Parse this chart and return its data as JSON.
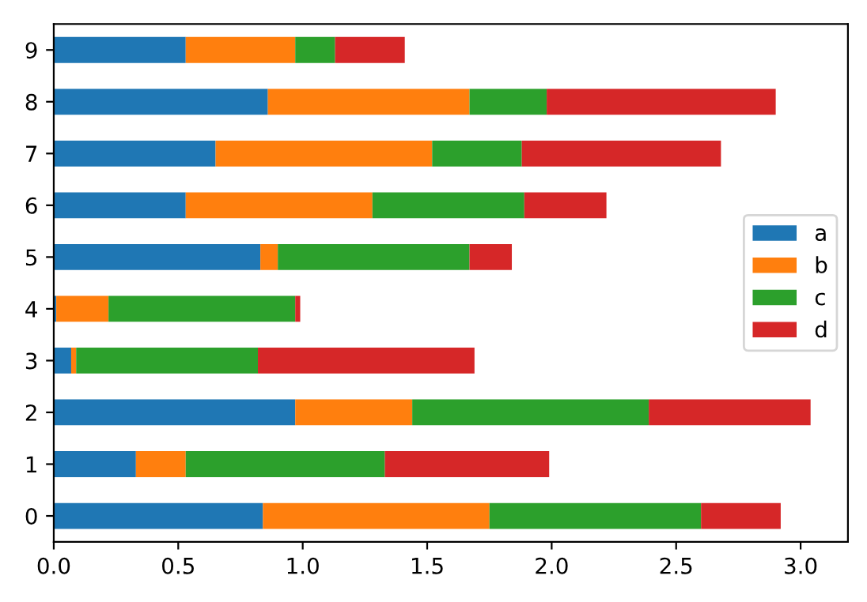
{
  "chart_data": {
    "type": "bar",
    "orientation": "horizontal",
    "stacked": true,
    "categories": [
      "9",
      "8",
      "7",
      "6",
      "5",
      "4",
      "3",
      "2",
      "1",
      "0"
    ],
    "series": [
      {
        "name": "a",
        "color": "#1f77b4",
        "values": [
          0.53,
          0.86,
          0.65,
          0.53,
          0.83,
          0.01,
          0.07,
          0.97,
          0.33,
          0.84
        ]
      },
      {
        "name": "b",
        "color": "#ff7f0e",
        "values": [
          0.44,
          0.81,
          0.87,
          0.75,
          0.07,
          0.21,
          0.02,
          0.47,
          0.2,
          0.91
        ]
      },
      {
        "name": "c",
        "color": "#2ca02c",
        "values": [
          0.16,
          0.31,
          0.36,
          0.61,
          0.77,
          0.75,
          0.73,
          0.95,
          0.8,
          0.85
        ]
      },
      {
        "name": "d",
        "color": "#d62728",
        "values": [
          0.28,
          0.92,
          0.8,
          0.33,
          0.17,
          0.02,
          0.87,
          0.65,
          0.66,
          0.32
        ]
      }
    ],
    "xlim": [
      0,
      3.19
    ],
    "xticks": [
      {
        "value": 0,
        "label": "0.0"
      },
      0.5,
      {
        "value": 1,
        "label": "1.0"
      },
      1.5,
      {
        "value": 2,
        "label": "2.0"
      },
      2.5,
      {
        "value": 3,
        "label": "3.0"
      }
    ],
    "legend": "center right",
    "grid": false
  }
}
